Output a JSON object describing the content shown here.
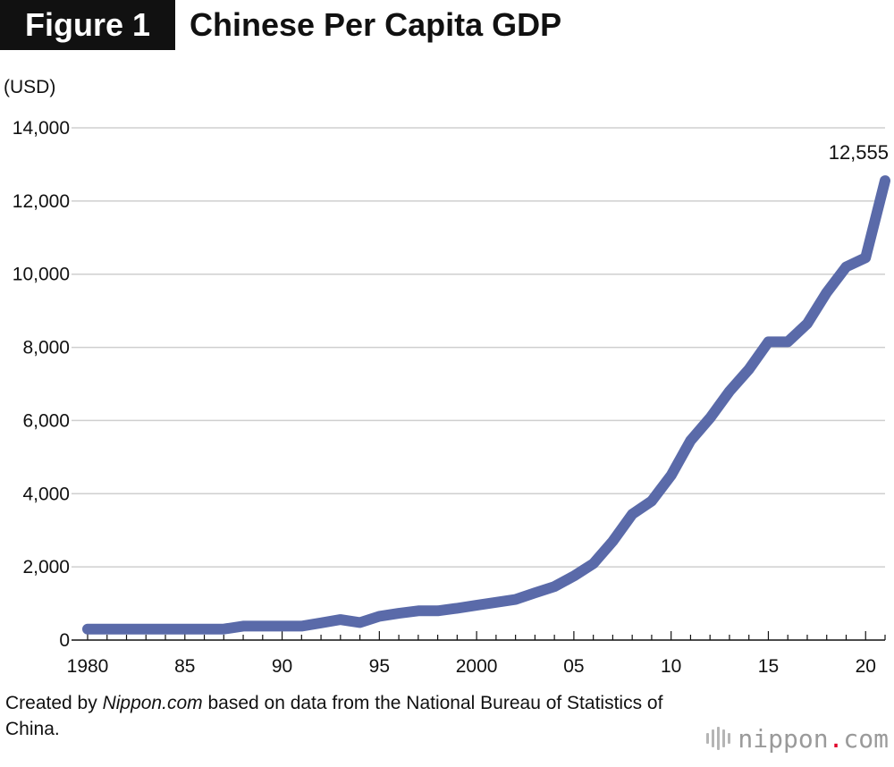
{
  "figure": {
    "badge": "Figure 1",
    "title": "Chinese Per Capita GDP",
    "unit": "(USD)",
    "source_prefix": "Created by ",
    "source_italic": "Nippon.com",
    "source_suffix": " based on data from the National Bureau of Statistics of China.",
    "brand_name": "nippon",
    "brand_dot": ".",
    "brand_suffix": "com",
    "brand_icon": "sound-wave-bars-icon"
  },
  "colors": {
    "line": "#5a6aa9",
    "grid": "#cfcfcf",
    "badge_bg": "#111111",
    "brand_dot": "#e0002a"
  },
  "chart_data": {
    "type": "line",
    "title": "Chinese Per Capita GDP",
    "ylabel": "(USD)",
    "xlabel": "",
    "ylim": [
      0,
      14000
    ],
    "xlim": [
      1980,
      2021
    ],
    "grid": true,
    "y_ticks": [
      0,
      2000,
      4000,
      6000,
      8000,
      10000,
      12000,
      14000
    ],
    "y_tick_labels": [
      "0",
      "2,000",
      "4,000",
      "6,000",
      "8,000",
      "10,000",
      "12,000",
      "14,000"
    ],
    "x_ticks": [
      1980,
      1985,
      1990,
      1995,
      2000,
      2005,
      2010,
      2015,
      2020
    ],
    "x_tick_labels": [
      "1980",
      "85",
      "90",
      "95",
      "2000",
      "05",
      "10",
      "15",
      "20"
    ],
    "x": [
      1980,
      1981,
      1982,
      1983,
      1984,
      1985,
      1986,
      1987,
      1988,
      1989,
      1990,
      1991,
      1992,
      1993,
      1994,
      1995,
      1996,
      1997,
      1998,
      1999,
      2000,
      2001,
      2002,
      2003,
      2004,
      2005,
      2006,
      2007,
      2008,
      2009,
      2010,
      2011,
      2012,
      2013,
      2014,
      2015,
      2016,
      2017,
      2018,
      2019,
      2020,
      2021
    ],
    "series": [
      {
        "values": [
          300,
          300,
          300,
          300,
          300,
          300,
          300,
          300,
          380,
          380,
          380,
          380,
          470,
          560,
          480,
          650,
          730,
          800,
          800,
          870,
          950,
          1030,
          1110,
          1290,
          1460,
          1750,
          2090,
          2700,
          3440,
          3800,
          4500,
          5450,
          6070,
          6800,
          7400,
          8150,
          8150,
          8650,
          9500,
          10200,
          10450,
          12555
        ]
      }
    ],
    "annotations": [
      {
        "x": 2021,
        "y": 12555,
        "text": "12,555"
      }
    ]
  }
}
